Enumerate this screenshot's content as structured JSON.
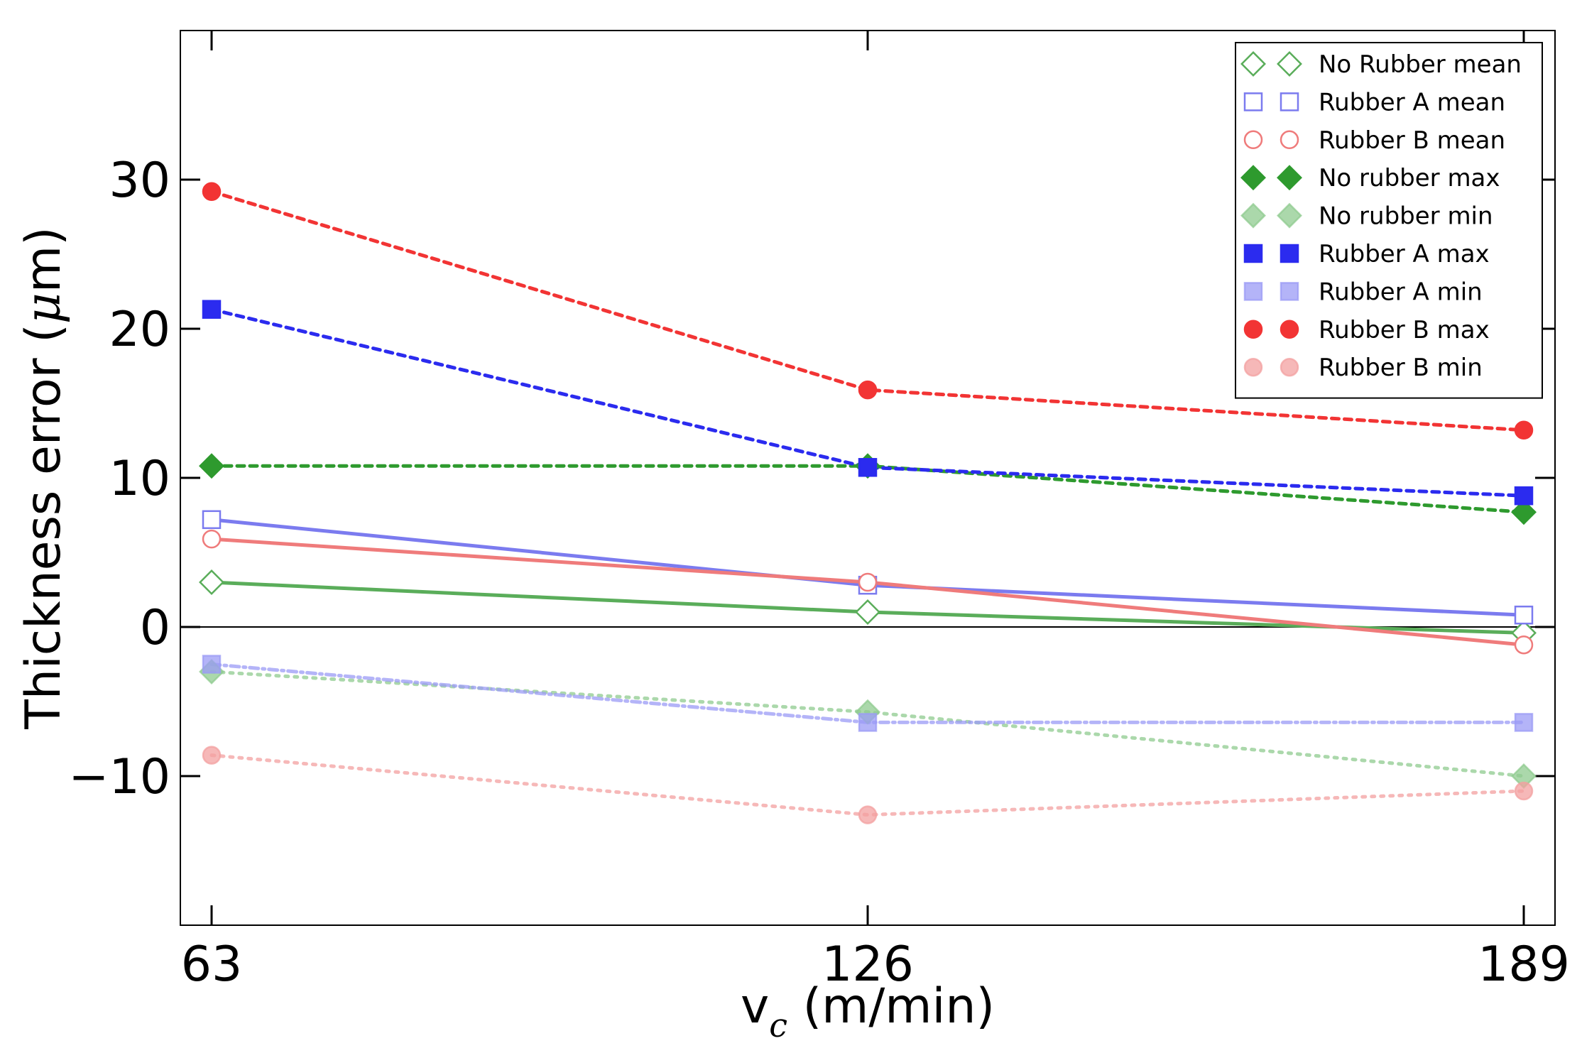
{
  "chart_data": {
    "type": "line",
    "title": "",
    "xlabel": "v",
    "xlabel_sub": "c",
    "xlabel_unit": " (m/min)",
    "ylabel": "Thickness error (",
    "ylabel_greek": "μ",
    "ylabel_unit": "m)",
    "x": [
      63,
      126,
      189
    ],
    "x_tick_labels": [
      "63",
      "126",
      "189"
    ],
    "xlim": [
      60,
      192
    ],
    "ylim": [
      -20,
      40
    ],
    "y_ticks": [
      -10,
      0,
      10,
      20,
      30
    ],
    "y_tick_labels": [
      "−10",
      "0",
      "10",
      "20",
      "30"
    ],
    "zero_line": true,
    "grid": false,
    "legend_position": "top-right",
    "series": [
      {
        "name": "No Rubber mean",
        "values": [
          3.0,
          1.0,
          -0.4
        ],
        "color": "#5aad5a",
        "marker": "diamond",
        "filled": false,
        "line": "solid",
        "alpha": 1.0
      },
      {
        "name": "Rubber A mean",
        "values": [
          7.2,
          2.8,
          0.8
        ],
        "color": "#7b7bef",
        "marker": "square",
        "filled": false,
        "line": "solid",
        "alpha": 1.0
      },
      {
        "name": "Rubber B mean",
        "values": [
          5.9,
          3.0,
          -1.2
        ],
        "color": "#ef7b7b",
        "marker": "circle",
        "filled": false,
        "line": "solid",
        "alpha": 1.0
      },
      {
        "name": "No rubber max",
        "values": [
          10.8,
          10.8,
          7.7
        ],
        "color": "#2e9a2e",
        "marker": "diamond",
        "filled": true,
        "line": "dashed",
        "alpha": 1.0
      },
      {
        "name": "No rubber min",
        "values": [
          -3.0,
          -5.7,
          -10.0
        ],
        "color": "#8fcb8f",
        "marker": "diamond",
        "filled": true,
        "line": "dotted",
        "alpha": 0.75
      },
      {
        "name": "Rubber A max",
        "values": [
          21.3,
          10.7,
          8.8
        ],
        "color": "#2b2bef",
        "marker": "square",
        "filled": true,
        "line": "dashed",
        "alpha": 1.0
      },
      {
        "name": "Rubber A min",
        "values": [
          -2.5,
          -6.4,
          -6.4
        ],
        "color": "#9b9bf5",
        "marker": "square",
        "filled": true,
        "line": "dashdot",
        "alpha": 0.75
      },
      {
        "name": "Rubber B max",
        "values": [
          29.2,
          15.9,
          13.2
        ],
        "color": "#f23434",
        "marker": "circle",
        "filled": true,
        "line": "dashed",
        "alpha": 1.0
      },
      {
        "name": "Rubber B min",
        "values": [
          -8.6,
          -12.6,
          -11.0
        ],
        "color": "#f3a0a0",
        "marker": "circle",
        "filled": true,
        "line": "dotted",
        "alpha": 0.75
      }
    ]
  }
}
